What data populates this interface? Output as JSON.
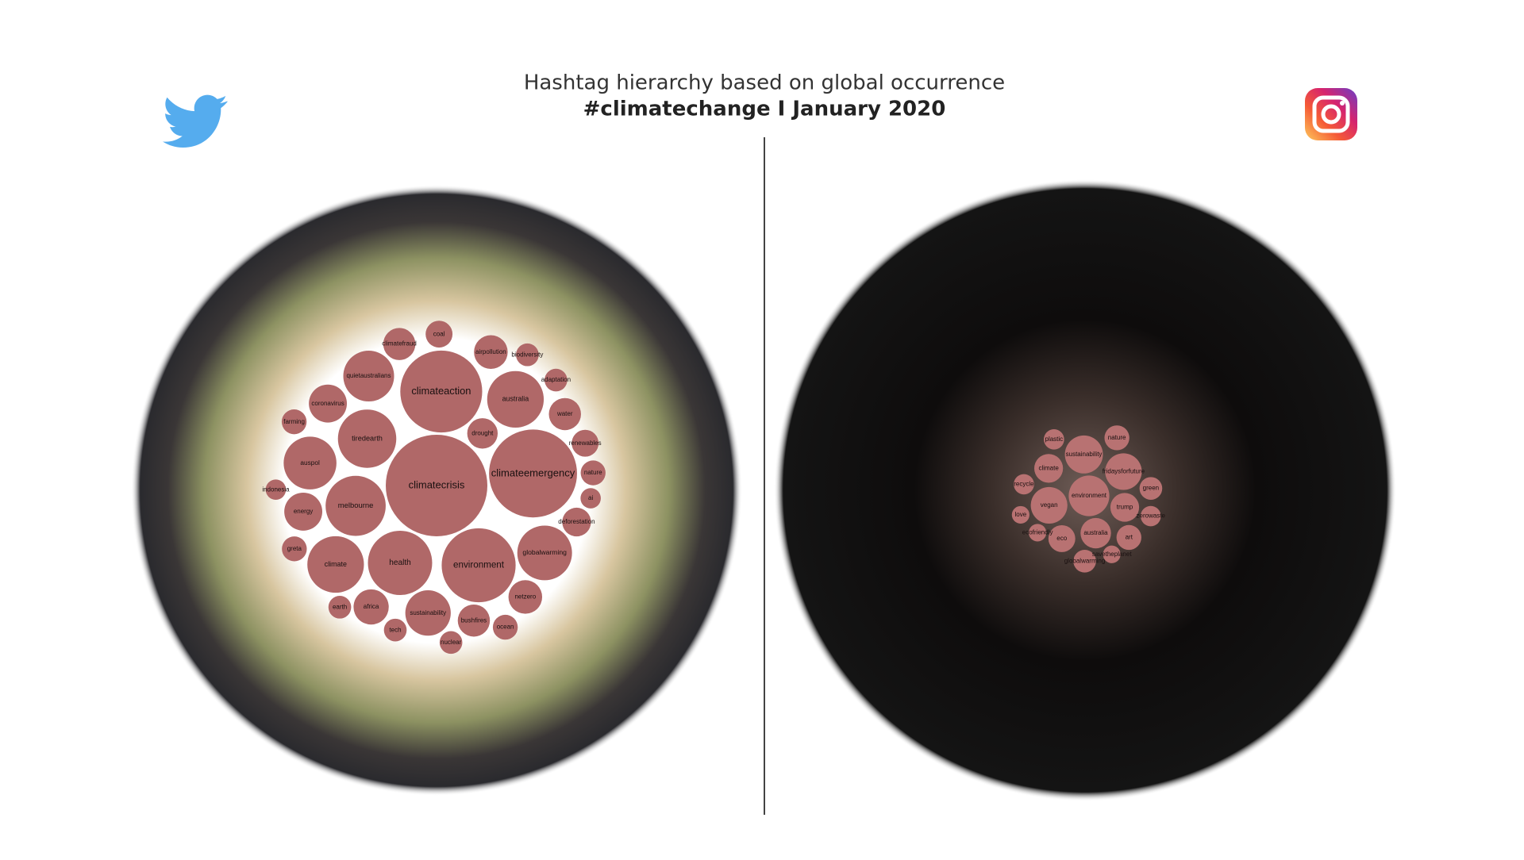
{
  "title": "Hashtag hierarchy based on global occurrence",
  "subtitle": "#climatechange I January 2020",
  "chart_data": [
    {
      "type": "bubble",
      "color": "#b06868",
      "categories": [
        "climatecrisis",
        "climateemergency",
        "climateaction",
        "environment",
        "health",
        "melbourne",
        "tiredearth",
        "australia",
        "climate",
        "globalwarming",
        "auspol",
        "quietaustralians",
        "sustainability",
        "energy",
        "coronavirus",
        "africa",
        "netzero",
        "airpollution",
        "bushfires",
        "climatefraud",
        "water",
        "drought",
        "deforestation",
        "coal",
        "renewables",
        "greta",
        "farming",
        "nature",
        "ocean",
        "tech",
        "earth",
        "nuclear",
        "biodiversity",
        "adaptation",
        "ai",
        "indonesia"
      ],
      "values": [
        100,
        75,
        65,
        53,
        40,
        35,
        33,
        31,
        31,
        29,
        27,
        25,
        20,
        14,
        14,
        12,
        11,
        11,
        10,
        10,
        10,
        9,
        8,
        7,
        7,
        6,
        6,
        6,
        6,
        5,
        5,
        5,
        5,
        5,
        4,
        4
      ]
    },
    {
      "type": "bubble",
      "color": "#b87272",
      "categories": [
        "environment",
        "sustainability",
        "vegan",
        "fridaysforfuture",
        "australia",
        "trump",
        "climate",
        "eco",
        "art",
        "nature",
        "green",
        "globalwarming",
        "zerowaste",
        "recycle",
        "plastic",
        "savetheplanet",
        "ecofriendly",
        "love"
      ],
      "values": [
        16,
        14,
        13,
        13,
        9,
        8,
        8,
        7,
        6,
        6,
        5,
        5,
        4,
        4,
        4,
        3,
        3,
        3
      ]
    }
  ]
}
